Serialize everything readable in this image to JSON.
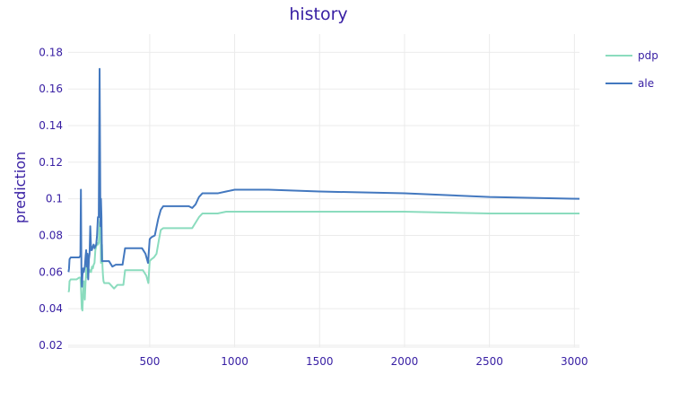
{
  "chart_data": {
    "type": "line",
    "title": "history",
    "xlabel": "",
    "ylabel": "prediction",
    "xlim": [
      20,
      3030
    ],
    "ylim": [
      0.019,
      0.19
    ],
    "xticks": [
      500,
      1000,
      1500,
      2000,
      2500,
      3000
    ],
    "yticks": [
      0.02,
      0.04,
      0.06,
      0.08,
      0.1,
      0.12,
      0.14,
      0.16,
      0.18
    ],
    "xtick_labels": [
      "500",
      "1000",
      "1500",
      "2000",
      "2500",
      "3000"
    ],
    "ytick_labels": [
      "0.02",
      "0.04",
      "0.06",
      "0.08",
      "0.1",
      "0.12",
      "0.14",
      "0.16",
      "0.18"
    ],
    "grid": true,
    "legend_position": "top-right",
    "series": [
      {
        "name": "pdp",
        "color": "#8bdcbe",
        "x": [
          22,
          25,
          28,
          35,
          50,
          70,
          85,
          92,
          96,
          100,
          104,
          108,
          112,
          118,
          122,
          126,
          130,
          134,
          140,
          146,
          150,
          155,
          160,
          165,
          170,
          175,
          180,
          185,
          190,
          195,
          200,
          205,
          210,
          213,
          216,
          219,
          222,
          225,
          228,
          232,
          238,
          245,
          260,
          290,
          310,
          330,
          345,
          355,
          365,
          380,
          420,
          460,
          480,
          492,
          500,
          510,
          525,
          540,
          555,
          565,
          580,
          600,
          650,
          700,
          730,
          750,
          770,
          790,
          810,
          840,
          870,
          900,
          950,
          1000,
          1100,
          1200,
          1500,
          2000,
          2500,
          3030
        ],
        "y": [
          0.049,
          0.05,
          0.055,
          0.056,
          0.056,
          0.056,
          0.057,
          0.057,
          0.05,
          0.04,
          0.039,
          0.049,
          0.055,
          0.045,
          0.054,
          0.06,
          0.065,
          0.057,
          0.062,
          0.06,
          0.061,
          0.06,
          0.063,
          0.062,
          0.064,
          0.065,
          0.072,
          0.074,
          0.076,
          0.075,
          0.076,
          0.087,
          0.09,
          0.065,
          0.072,
          0.075,
          0.063,
          0.058,
          0.055,
          0.054,
          0.054,
          0.054,
          0.054,
          0.051,
          0.053,
          0.053,
          0.053,
          0.061,
          0.061,
          0.061,
          0.061,
          0.061,
          0.058,
          0.054,
          0.066,
          0.067,
          0.068,
          0.07,
          0.078,
          0.083,
          0.084,
          0.084,
          0.084,
          0.084,
          0.084,
          0.084,
          0.087,
          0.09,
          0.092,
          0.092,
          0.092,
          0.092,
          0.093,
          0.093,
          0.093,
          0.093,
          0.093,
          0.093,
          0.092,
          0.092
        ]
      },
      {
        "name": "ale",
        "color": "#4378bf",
        "x": [
          22,
          25,
          28,
          35,
          50,
          70,
          85,
          92,
          95,
          98,
          101,
          104,
          108,
          112,
          118,
          122,
          126,
          130,
          134,
          138,
          142,
          146,
          150,
          155,
          160,
          165,
          170,
          175,
          180,
          185,
          190,
          195,
          200,
          205,
          208,
          210,
          213,
          216,
          219,
          222,
          225,
          228,
          232,
          240,
          260,
          280,
          300,
          320,
          340,
          355,
          365,
          380,
          420,
          455,
          475,
          490,
          500,
          510,
          530,
          550,
          565,
          580,
          600,
          650,
          700,
          730,
          750,
          770,
          790,
          810,
          840,
          870,
          900,
          950,
          1000,
          1100,
          1200,
          1500,
          2000,
          2500,
          3030
        ],
        "y": [
          0.06,
          0.062,
          0.067,
          0.068,
          0.068,
          0.068,
          0.068,
          0.069,
          0.105,
          0.06,
          0.052,
          0.058,
          0.062,
          0.06,
          0.063,
          0.068,
          0.072,
          0.063,
          0.07,
          0.056,
          0.067,
          0.07,
          0.085,
          0.072,
          0.072,
          0.074,
          0.075,
          0.073,
          0.074,
          0.075,
          0.08,
          0.09,
          0.09,
          0.171,
          0.12,
          0.085,
          0.1,
          0.09,
          0.066,
          0.066,
          0.066,
          0.066,
          0.066,
          0.066,
          0.066,
          0.063,
          0.064,
          0.064,
          0.064,
          0.073,
          0.073,
          0.073,
          0.073,
          0.073,
          0.07,
          0.065,
          0.078,
          0.079,
          0.08,
          0.089,
          0.094,
          0.096,
          0.096,
          0.096,
          0.096,
          0.096,
          0.095,
          0.097,
          0.101,
          0.103,
          0.103,
          0.103,
          0.103,
          0.104,
          0.105,
          0.105,
          0.105,
          0.104,
          0.103,
          0.101,
          0.1
        ]
      }
    ]
  }
}
